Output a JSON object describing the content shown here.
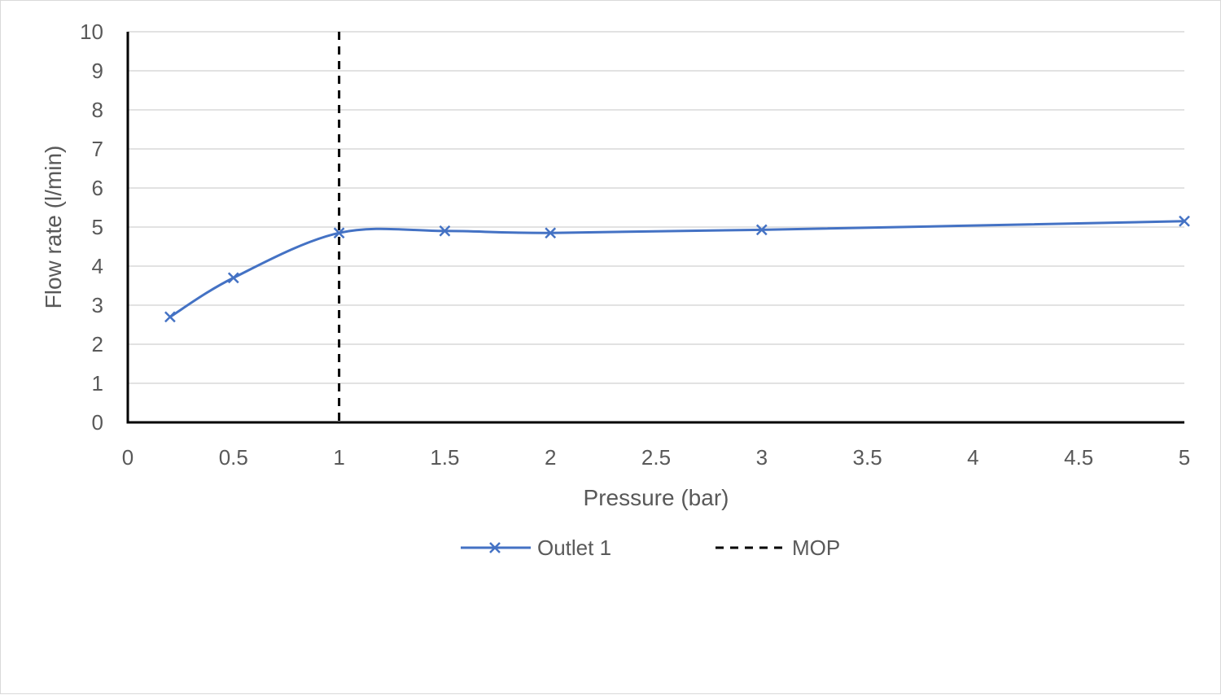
{
  "chart_data": {
    "type": "line",
    "xlabel": "Pressure (bar)",
    "ylabel": "Flow rate (l/min)",
    "xlim": [
      0,
      5
    ],
    "ylim": [
      0,
      10
    ],
    "x_ticks": [
      "0",
      "0.5",
      "1",
      "1.5",
      "2",
      "2.5",
      "3",
      "3.5",
      "4",
      "4.5",
      "5"
    ],
    "y_ticks": [
      "0",
      "1",
      "2",
      "3",
      "4",
      "5",
      "6",
      "7",
      "8",
      "9",
      "10"
    ],
    "grid": "horizontal",
    "legend_position": "bottom",
    "series": [
      {
        "name": "Outlet 1",
        "style": "smooth line with x markers",
        "color": "#4472c4",
        "points": [
          {
            "x": 0.2,
            "y": 2.7
          },
          {
            "x": 0.5,
            "y": 3.7
          },
          {
            "x": 1.0,
            "y": 4.85
          },
          {
            "x": 1.5,
            "y": 4.9
          },
          {
            "x": 2.0,
            "y": 4.85
          },
          {
            "x": 3.0,
            "y": 4.93
          },
          {
            "x": 5.0,
            "y": 5.15
          }
        ]
      },
      {
        "name": "MOP",
        "style": "dashed vertical line",
        "color": "#000000",
        "x": 1.0
      }
    ]
  }
}
